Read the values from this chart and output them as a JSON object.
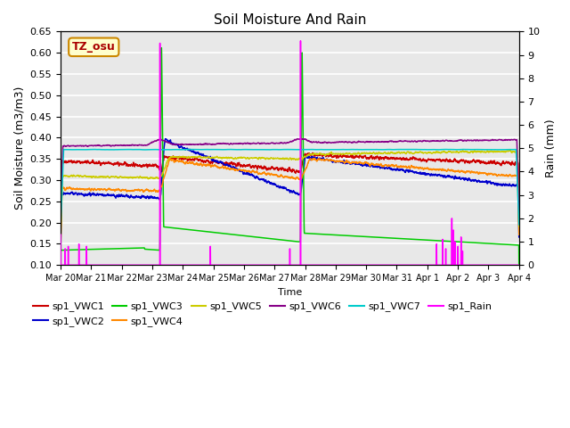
{
  "title": "Soil Moisture And Rain",
  "xlabel": "Time",
  "ylabel_left": "Soil Moisture (m3/m3)",
  "ylabel_right": "Rain (mm)",
  "ylim_left": [
    0.1,
    0.65
  ],
  "ylim_right": [
    0.0,
    10.0
  ],
  "annotation_text": "TZ_osu",
  "annotation_color": "#aa0000",
  "annotation_bg": "#ffffcc",
  "annotation_border": "#cc8800",
  "x_tick_labels": [
    "Mar 20",
    "Mar 21",
    "Mar 22",
    "Mar 23",
    "Mar 24",
    "Mar 25",
    "Mar 26",
    "Mar 27",
    "Mar 28",
    "Mar 29",
    "Mar 30",
    "Mar 31",
    "Apr 1",
    "Apr 2",
    "Apr 3",
    "Apr 4"
  ],
  "colors": {
    "VWC1": "#cc0000",
    "VWC2": "#0000cc",
    "VWC3": "#00cc00",
    "VWC4": "#ff8800",
    "VWC5": "#cccc00",
    "VWC6": "#880088",
    "VWC7": "#00cccc",
    "Rain": "#ff00ff"
  },
  "yticks_left": [
    0.1,
    0.15,
    0.2,
    0.25,
    0.3,
    0.35,
    0.4,
    0.45,
    0.5,
    0.55,
    0.6,
    0.65
  ],
  "yticks_right": [
    0.0,
    1.0,
    2.0,
    3.0,
    4.0,
    5.0,
    6.0,
    7.0,
    8.0,
    9.0,
    10.0
  ],
  "background_color": "#e8e8e8",
  "grid_color": "#ffffff"
}
